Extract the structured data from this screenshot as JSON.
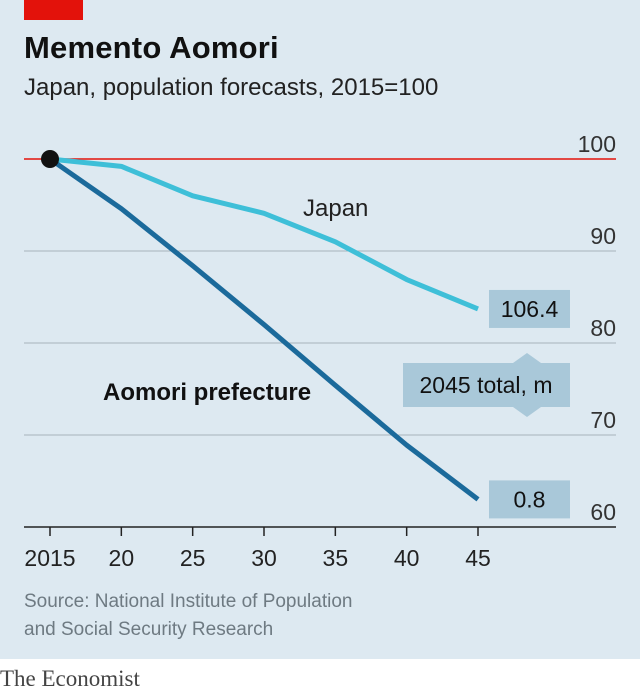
{
  "header": {
    "title": "Memento Aomori",
    "subtitle": "Japan, population forecasts, 2015=100"
  },
  "chart_data": {
    "type": "line",
    "x": [
      2015,
      2020,
      2025,
      2030,
      2035,
      2040,
      2045
    ],
    "xticks": [
      "2015",
      "20",
      "25",
      "30",
      "35",
      "40",
      "45"
    ],
    "yticks": [
      "60",
      "70",
      "80",
      "90",
      "100"
    ],
    "ylim": [
      60,
      100
    ],
    "series": [
      {
        "name": "Japan",
        "values": [
          100,
          99.2,
          96.0,
          94.1,
          91.0,
          86.9,
          83.7
        ],
        "color": "#3ebfd8",
        "end_label": "106.4"
      },
      {
        "name": "Aomori prefecture",
        "values": [
          100,
          94.6,
          88.4,
          82.0,
          75.4,
          68.9,
          63.0
        ],
        "color": "#1b6a9b",
        "end_label": "0.8"
      }
    ],
    "annotation": "2045 total, m",
    "reference_line": 100,
    "grid": true
  },
  "source": {
    "line1": "Source: National Institute of Population",
    "line2": "and Social Security Research"
  },
  "brand": "The Economist",
  "colors": {
    "accent_red": "#e3120b",
    "panel_bg": "#dde9f1",
    "label_box": "#a9c8d9"
  }
}
